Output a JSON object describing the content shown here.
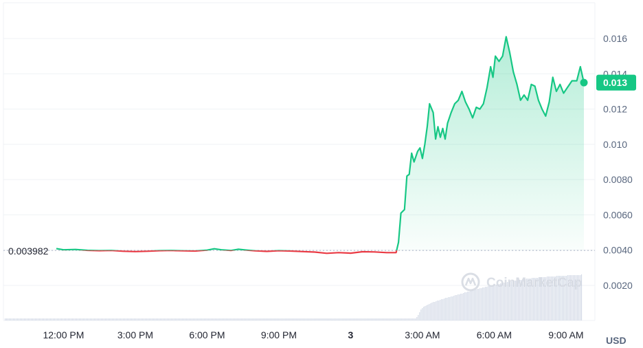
{
  "colors": {
    "up": "#16c784",
    "down": "#ea3943",
    "grid": "#eff2f5",
    "volume": "#cfd6e4",
    "text": "#58667e"
  },
  "watermark": {
    "text": "CoinMarketCap",
    "icon": "coinmarketcap-logo-icon"
  },
  "chart_data": {
    "type": "line",
    "unit": "USD",
    "reference_price": 0.003982,
    "reference_label": "0.003982",
    "current_price_label": "0.013",
    "y_ticks": [
      {
        "value": 0.002,
        "label": "0.0020"
      },
      {
        "value": 0.004,
        "label": "0.0040"
      },
      {
        "value": 0.006,
        "label": "0.0060"
      },
      {
        "value": 0.008,
        "label": "0.0080"
      },
      {
        "value": 0.01,
        "label": "0.010"
      },
      {
        "value": 0.012,
        "label": "0.012"
      },
      {
        "value": 0.014,
        "label": "0.014"
      },
      {
        "value": 0.016,
        "label": "0.016"
      }
    ],
    "x_ticks": [
      {
        "hour": 12,
        "label": "12:00 PM"
      },
      {
        "hour": 15,
        "label": "3:00 PM"
      },
      {
        "hour": 18,
        "label": "6:00 PM"
      },
      {
        "hour": 21,
        "label": "9:00 PM"
      },
      {
        "hour": 24,
        "label": "3"
      },
      {
        "hour": 27,
        "label": "3:00 AM"
      },
      {
        "hour": 30,
        "label": "6:00 AM"
      },
      {
        "hour": 33,
        "label": "9:00 AM"
      }
    ],
    "series": [
      {
        "points": [
          [
            11.7,
            0.00409
          ],
          [
            12.0,
            0.00402
          ],
          [
            12.5,
            0.00404
          ],
          [
            13.0,
            0.00399
          ],
          [
            13.5,
            0.00397
          ],
          [
            14.0,
            0.00398
          ],
          [
            14.5,
            0.00394
          ],
          [
            15.0,
            0.00392
          ],
          [
            15.5,
            0.00394
          ],
          [
            16.0,
            0.00397
          ],
          [
            16.5,
            0.00398
          ],
          [
            17.0,
            0.00396
          ],
          [
            17.5,
            0.00395
          ],
          [
            18.0,
            0.004
          ],
          [
            18.3,
            0.00408
          ],
          [
            18.6,
            0.00402
          ],
          [
            19.0,
            0.00398
          ],
          [
            19.3,
            0.00405
          ],
          [
            19.6,
            0.00401
          ],
          [
            20.0,
            0.00396
          ],
          [
            20.5,
            0.00393
          ],
          [
            21.0,
            0.00397
          ],
          [
            21.5,
            0.00395
          ],
          [
            22.0,
            0.00392
          ],
          [
            22.5,
            0.00389
          ],
          [
            23.0,
            0.00382
          ],
          [
            23.5,
            0.00386
          ],
          [
            24.0,
            0.00383
          ],
          [
            24.5,
            0.00391
          ],
          [
            25.0,
            0.0039
          ],
          [
            25.5,
            0.00386
          ],
          [
            25.9,
            0.00386
          ],
          [
            26.0,
            0.00445
          ],
          [
            26.1,
            0.0061
          ],
          [
            26.25,
            0.0063
          ],
          [
            26.35,
            0.0082
          ],
          [
            26.45,
            0.0083
          ],
          [
            26.55,
            0.0095
          ],
          [
            26.65,
            0.009
          ],
          [
            26.8,
            0.0096
          ],
          [
            26.9,
            0.0098
          ],
          [
            27.0,
            0.0092
          ],
          [
            27.1,
            0.01
          ],
          [
            27.2,
            0.011
          ],
          [
            27.3,
            0.0123
          ],
          [
            27.45,
            0.0118
          ],
          [
            27.55,
            0.0103
          ],
          [
            27.65,
            0.011
          ],
          [
            27.75,
            0.0104
          ],
          [
            27.85,
            0.0109
          ],
          [
            27.95,
            0.0103
          ],
          [
            28.05,
            0.0112
          ],
          [
            28.2,
            0.0118
          ],
          [
            28.35,
            0.0123
          ],
          [
            28.5,
            0.0125
          ],
          [
            28.65,
            0.013
          ],
          [
            28.8,
            0.0124
          ],
          [
            28.95,
            0.012
          ],
          [
            29.1,
            0.0115
          ],
          [
            29.25,
            0.0121
          ],
          [
            29.4,
            0.012
          ],
          [
            29.55,
            0.0123
          ],
          [
            29.7,
            0.0132
          ],
          [
            29.85,
            0.0144
          ],
          [
            29.95,
            0.0138
          ],
          [
            30.05,
            0.015
          ],
          [
            30.2,
            0.0147
          ],
          [
            30.35,
            0.015
          ],
          [
            30.5,
            0.0161
          ],
          [
            30.65,
            0.0152
          ],
          [
            30.8,
            0.0141
          ],
          [
            30.95,
            0.0134
          ],
          [
            31.1,
            0.0125
          ],
          [
            31.25,
            0.0128
          ],
          [
            31.4,
            0.0125
          ],
          [
            31.55,
            0.0134
          ],
          [
            31.7,
            0.0133
          ],
          [
            31.85,
            0.0125
          ],
          [
            32.0,
            0.012
          ],
          [
            32.15,
            0.0116
          ],
          [
            32.3,
            0.0124
          ],
          [
            32.45,
            0.0138
          ],
          [
            32.6,
            0.013
          ],
          [
            32.75,
            0.0134
          ],
          [
            32.9,
            0.0129
          ],
          [
            33.05,
            0.0132
          ],
          [
            33.25,
            0.0136
          ],
          [
            33.45,
            0.0136
          ],
          [
            33.6,
            0.0144
          ],
          [
            33.75,
            0.0135
          ]
        ]
      }
    ],
    "volume": {
      "values": [
        3,
        3,
        3,
        3,
        3,
        3,
        3,
        3,
        3,
        3,
        3,
        3,
        3,
        3,
        3,
        3,
        3,
        3,
        3,
        3,
        3,
        3,
        3,
        3,
        3,
        3,
        3,
        3,
        3,
        3,
        3,
        3,
        3,
        3,
        3,
        3,
        3,
        3,
        3,
        3,
        3,
        3,
        3,
        3,
        3,
        3,
        3,
        3,
        3,
        3,
        3,
        3,
        3,
        3,
        3,
        3,
        3,
        3,
        3,
        3,
        3,
        3,
        3,
        3,
        3,
        3,
        3,
        3,
        3,
        3,
        3,
        3,
        3,
        3,
        3,
        3,
        3,
        3,
        3,
        3,
        3,
        3,
        3,
        3,
        3,
        3,
        3,
        3,
        3,
        3,
        3,
        3,
        3,
        3,
        3,
        3,
        3,
        3,
        3,
        3,
        3,
        3,
        3,
        3,
        3,
        3,
        3,
        3,
        3,
        3,
        3,
        3,
        3,
        3,
        3,
        3,
        3,
        3,
        3,
        3,
        3,
        3,
        3,
        3,
        3,
        3,
        3,
        3,
        3,
        3,
        3,
        3,
        3,
        3,
        3,
        3,
        3,
        3,
        3,
        3,
        3,
        3,
        3,
        3,
        3,
        3,
        3,
        3,
        3,
        3,
        3,
        3,
        3,
        3,
        3,
        3,
        3,
        3,
        3,
        3,
        3,
        3,
        3,
        3,
        3,
        3,
        3,
        3,
        3,
        3,
        3,
        3,
        3,
        3,
        3,
        3,
        3,
        3,
        3,
        3,
        3,
        3,
        3,
        3,
        3,
        3,
        3,
        3,
        3,
        3,
        3,
        3,
        3,
        3,
        3,
        3,
        3,
        3,
        3,
        3,
        3,
        3,
        3,
        3,
        3,
        3,
        3,
        3,
        3,
        3,
        3,
        3,
        3,
        3,
        3,
        3,
        3,
        3,
        3,
        3,
        3,
        3,
        3,
        3,
        3,
        3,
        3,
        3,
        3,
        3,
        3,
        3,
        3,
        3,
        3,
        3,
        3,
        3,
        3,
        3,
        3,
        3,
        3,
        3,
        3,
        3,
        3,
        3,
        3,
        3,
        3,
        3,
        3,
        3,
        3,
        3,
        3,
        3,
        3,
        3,
        3,
        3,
        3,
        3,
        3,
        3,
        3,
        3,
        3,
        3,
        3,
        3,
        3,
        3,
        3,
        3,
        3,
        3,
        3,
        3,
        3,
        3,
        3,
        3,
        3,
        3,
        3,
        3,
        3,
        3,
        3,
        3,
        3,
        3,
        3,
        3,
        3,
        3,
        3,
        3,
        5,
        8,
        12,
        16,
        18,
        20,
        21,
        22,
        23,
        24,
        25,
        26,
        27,
        27,
        28,
        29,
        29,
        30,
        31,
        31,
        32,
        33,
        33,
        34,
        34,
        35,
        35,
        36,
        37,
        37,
        38,
        38,
        39,
        39,
        40,
        41,
        41,
        42,
        42,
        43,
        44,
        44,
        45,
        45,
        46,
        46,
        47,
        47,
        48,
        48,
        49,
        49,
        50,
        50,
        51,
        51,
        52,
        52,
        52,
        53,
        53,
        54,
        54,
        55,
        55,
        55,
        56,
        56,
        57,
        57,
        57,
        58,
        58,
        58,
        59,
        59,
        59,
        60,
        60,
        60,
        61,
        61,
        61,
        61,
        62,
        62,
        62,
        62,
        62,
        63,
        63,
        63,
        63,
        63,
        63,
        64,
        64,
        64,
        64,
        64,
        64,
        64,
        65,
        65,
        65,
        65,
        65,
        65,
        65,
        65,
        66,
        66,
        66,
        66,
        66,
        66,
        66,
        66,
        66,
        66,
        67
      ]
    }
  }
}
